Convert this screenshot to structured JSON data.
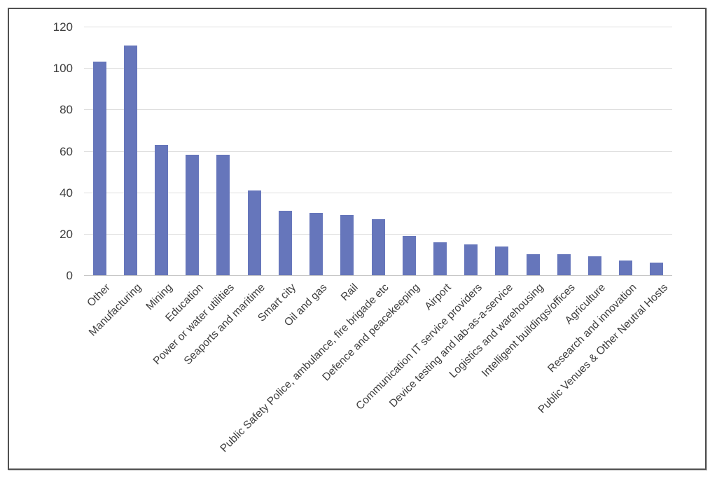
{
  "chart_data": {
    "type": "bar",
    "title": "",
    "xlabel": "",
    "ylabel": "",
    "categories": [
      "Other",
      "Manufacturing",
      "Mining",
      "Education",
      "Power or water utilities",
      "Seaports and maritime",
      "Smart city",
      "Oil and gas",
      "Rail",
      "Public Safety Police, ambulance, fire brigade etc",
      "Defence and peacekeeping",
      "Airport",
      "Communication IT service providers",
      "Device testing and lab-as-a-service",
      "Logistics and warehousing",
      "Intelligent buildings/offices",
      "Agriculture",
      "Research and innovation",
      "Public Venues & Other Neutral Hosts"
    ],
    "values": [
      103,
      111,
      63,
      58,
      58,
      41,
      31,
      30,
      29,
      27,
      19,
      16,
      15,
      14,
      10,
      10,
      9,
      7,
      6
    ],
    "ylim": [
      0,
      120
    ],
    "yticks": [
      0,
      20,
      40,
      60,
      80,
      100,
      120
    ],
    "grid": true,
    "legend": false,
    "colors": {
      "bar": "#6676bb",
      "gridline": "#dedede",
      "axis_line": "#c6c6c6",
      "tick_label": "#3d3d3d",
      "frame_border": "#515151"
    }
  }
}
